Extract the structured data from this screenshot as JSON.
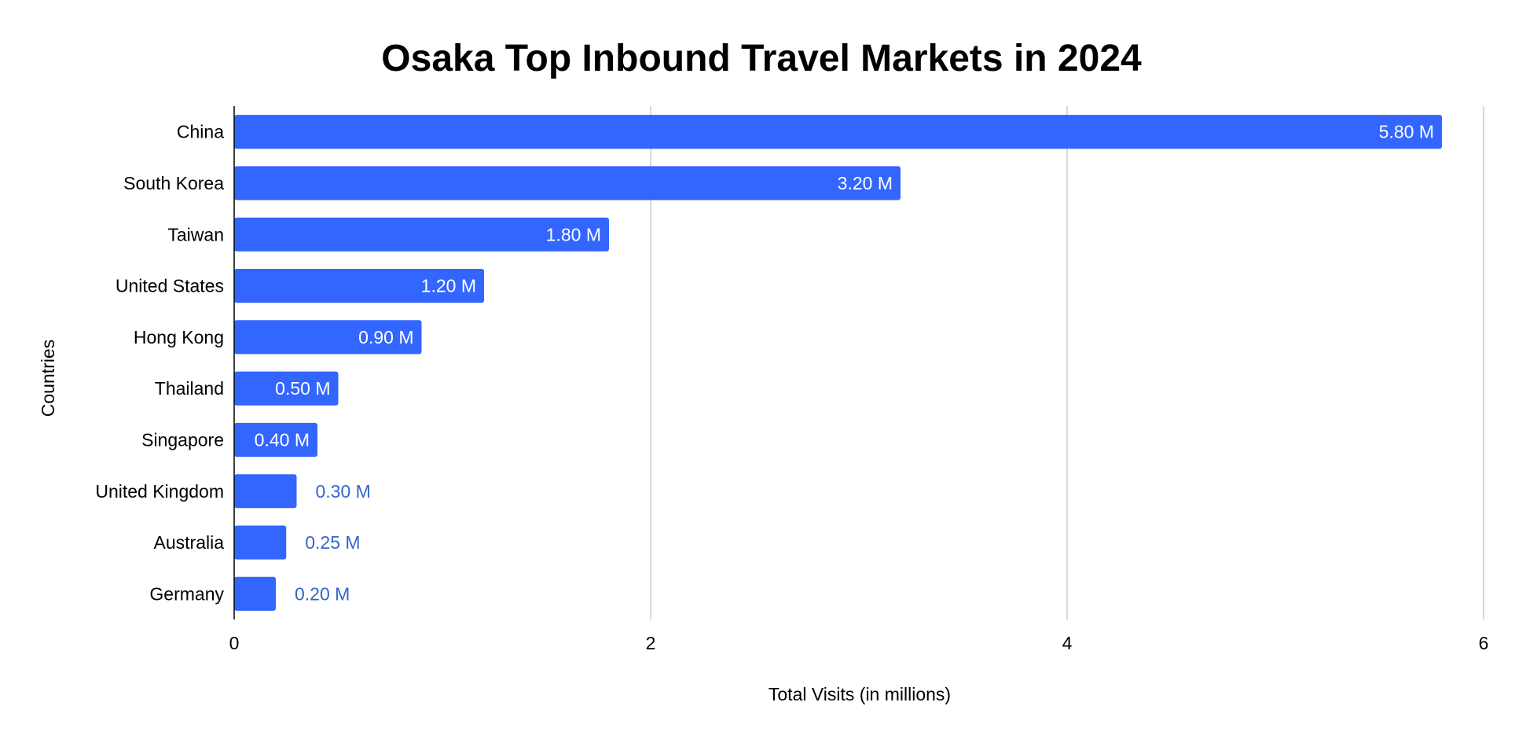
{
  "chart_data": {
    "type": "bar",
    "orientation": "horizontal",
    "title": "Osaka Top Inbound Travel Markets in 2024",
    "xlabel": "Total Visits (in millions)",
    "ylabel": "Countries",
    "categories": [
      "China",
      "South Korea",
      "Taiwan",
      "United States",
      "Hong Kong",
      "Thailand",
      "Singapore",
      "United Kingdom",
      "Australia",
      "Germany"
    ],
    "values": [
      5.8,
      3.2,
      1.8,
      1.2,
      0.9,
      0.5,
      0.4,
      0.3,
      0.25,
      0.2
    ],
    "data_labels": [
      "5.80 M",
      "3.20 M",
      "1.80 M",
      "1.20 M",
      "0.90 M",
      "0.50 M",
      "0.40 M",
      "0.30 M",
      "0.25 M",
      "0.20 M"
    ],
    "xlim": [
      0,
      6
    ],
    "xticks": [
      "0",
      "2",
      "4",
      "6"
    ],
    "grid": "vertical",
    "legend": "none",
    "colors": {
      "bar": "#3366ff",
      "label_inside": "#ffffff",
      "label_outside": "#3366cc",
      "grid": "#cccccc",
      "axis": "#000000"
    }
  }
}
